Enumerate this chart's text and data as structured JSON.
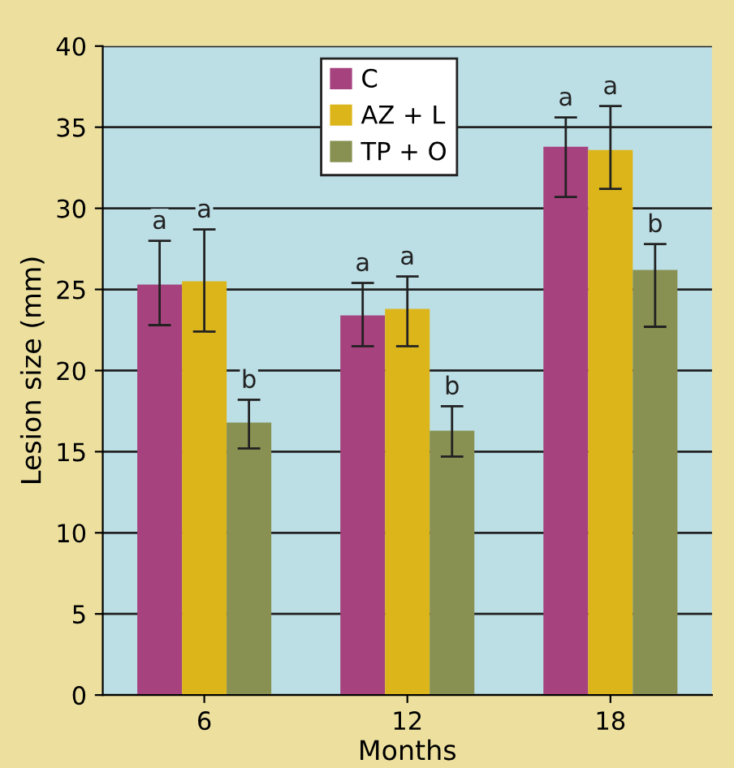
{
  "chart_data": {
    "type": "bar",
    "xlabel": "Months",
    "ylabel": "Lesion size (mm)",
    "categories": [
      "6",
      "12",
      "18"
    ],
    "series": [
      {
        "name": "C",
        "color": "#a6427e",
        "values": [
          25.3,
          23.4,
          33.8
        ],
        "errors": [
          [
            22.8,
            28.0
          ],
          [
            21.5,
            25.4
          ],
          [
            30.7,
            35.6
          ]
        ]
      },
      {
        "name": "AZ + L",
        "color": "#dcb51b",
        "values": [
          25.5,
          23.8,
          33.6
        ],
        "errors": [
          [
            22.4,
            28.7
          ],
          [
            21.5,
            25.8
          ],
          [
            31.2,
            36.3
          ]
        ]
      },
      {
        "name": "TP + O",
        "color": "#889152",
        "values": [
          16.8,
          16.3,
          26.2
        ],
        "errors": [
          [
            15.2,
            18.2
          ],
          [
            14.7,
            17.8
          ],
          [
            22.7,
            27.8
          ]
        ]
      }
    ],
    "annotations": [
      "a",
      "a",
      "b",
      "a",
      "a",
      "b",
      "a",
      "a",
      "b"
    ],
    "ylim": [
      0,
      40
    ],
    "yticks": [
      0,
      5,
      10,
      15,
      20,
      25,
      30,
      35,
      40
    ],
    "grid": "y",
    "legend": "top"
  }
}
